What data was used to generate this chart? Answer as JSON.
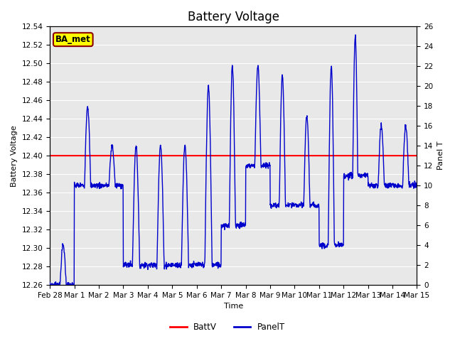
{
  "title": "Battery Voltage",
  "xlabel": "Time",
  "ylabel_left": "Battery Voltage",
  "ylabel_right": "Panel T",
  "ylim_left": [
    12.26,
    12.54
  ],
  "ylim_right": [
    0,
    26
  ],
  "yticks_left": [
    12.26,
    12.28,
    12.3,
    12.32,
    12.34,
    12.36,
    12.38,
    12.4,
    12.42,
    12.44,
    12.46,
    12.48,
    12.5,
    12.52,
    12.54
  ],
  "yticks_right": [
    0,
    2,
    4,
    6,
    8,
    10,
    12,
    14,
    16,
    18,
    20,
    22,
    24,
    26
  ],
  "battv_value": 12.4,
  "battv_color": "#ff0000",
  "panel_color": "#0000cc",
  "fig_bg_color": "#ffffff",
  "plot_bg_color": "#e8e8e8",
  "grid_color": "#ffffff",
  "legend_items": [
    "BattV",
    "PanelT"
  ],
  "annotation_text": "BA_met",
  "annotation_bg": "#ffff00",
  "annotation_border": "#8b0000",
  "title_fontsize": 12,
  "axis_label_fontsize": 8,
  "tick_fontsize": 7.5,
  "x_tick_positions": [
    0,
    1,
    2,
    3,
    4,
    5,
    6,
    7,
    8,
    9,
    10,
    11,
    12,
    13,
    14,
    15
  ],
  "x_tick_labels": [
    "Feb 28",
    "Mar 1",
    "Mar 2",
    "Mar 3",
    "Mar 4",
    "Mar 5",
    "Mar 6",
    "Mar 7",
    "Mar 8",
    "Mar 9",
    "Mar 10",
    "Mar 11",
    "Mar 12",
    "Mar 13",
    "Mar 14",
    "Mar 15"
  ]
}
